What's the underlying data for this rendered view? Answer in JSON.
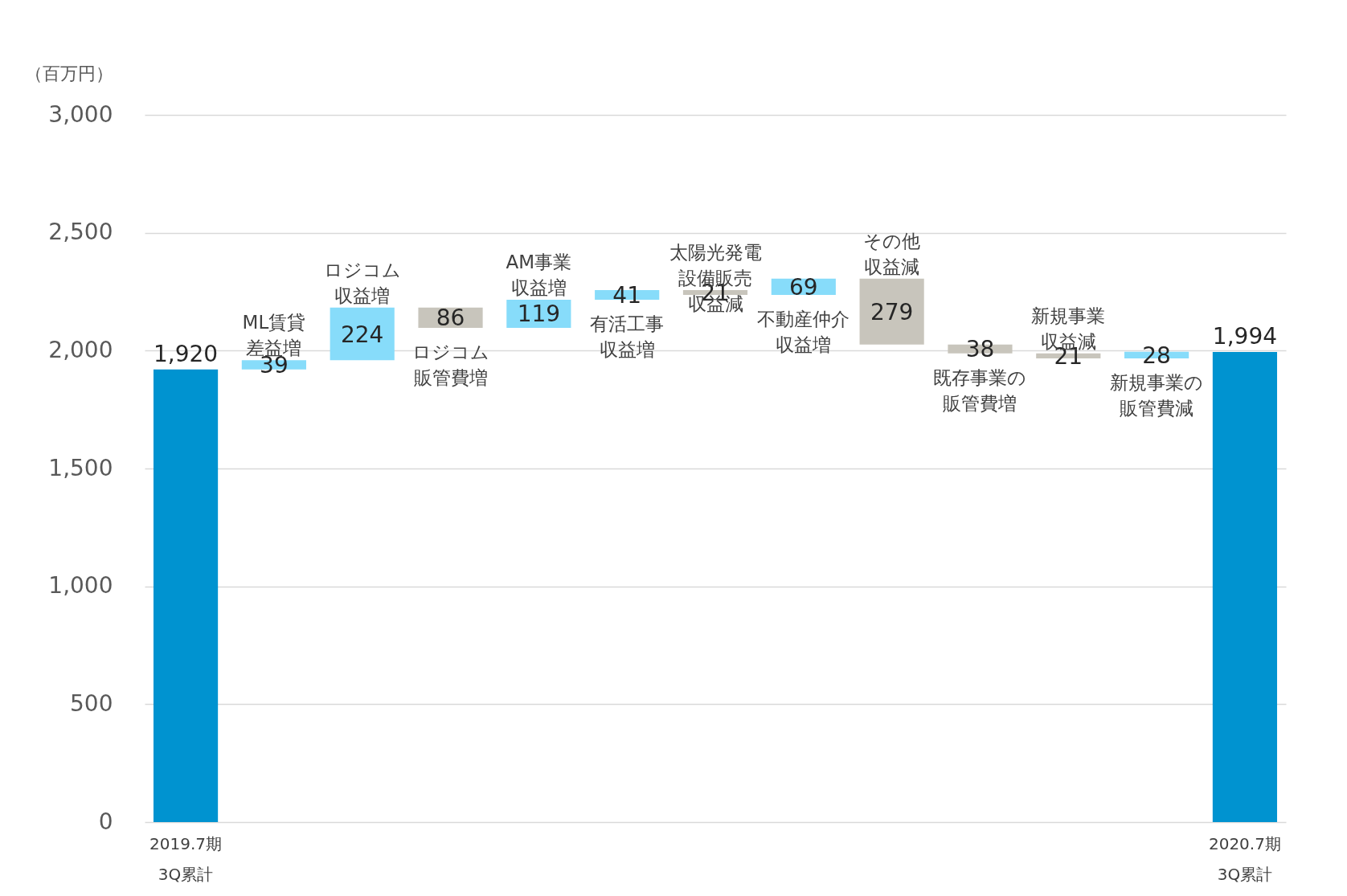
{
  "chart_data": {
    "type": "bar",
    "ylabel": "（百万円）",
    "categories": [
      "2019.7期3Q累計",
      "ML賃貸差益増",
      "ロジコム収益増",
      "ロジコム販管費増",
      "AM事業収益増",
      "有活工事収益増",
      "太陽光発電設備販売収益減",
      "不動産仲介収益増",
      "その他収益減",
      "既存事業の販管費増",
      "新規事業収益減",
      "新規事業の販管費減",
      "2020.7期3Q累計"
    ],
    "values": [
      1920,
      39,
      224,
      86,
      119,
      41,
      21,
      69,
      279,
      38,
      21,
      28,
      1994
    ],
    "value_labels": [
      "1,920",
      "39",
      "224",
      "86",
      "119",
      "41",
      "21",
      "69",
      "279",
      "38",
      "21",
      "28",
      "1,994"
    ],
    "base": [
      0,
      1920,
      1959,
      2097,
      2097,
      2216,
      2236,
      2236,
      2026,
      1988,
      1967,
      1967,
      0
    ],
    "colors": [
      "#0093d0",
      "#87dcfa",
      "#87dcfa",
      "#c8c5bc",
      "#87dcfa",
      "#87dcfa",
      "#c8c5bc",
      "#87dcfa",
      "#c8c5bc",
      "#c8c5bc",
      "#c8c5bc",
      "#87dcfa",
      "#0093d0"
    ],
    "ylim": [
      0,
      3000
    ],
    "yticks": [
      0,
      500,
      {
        "value": 1000,
        "label": "1,000"
      },
      {
        "value": 1500,
        "label": "1,500"
      },
      {
        "value": 2000,
        "label": "2,000"
      },
      {
        "value": 2500,
        "label": "2,500"
      },
      {
        "value": 3000,
        "label": "3,000"
      }
    ],
    "grid": "y"
  }
}
